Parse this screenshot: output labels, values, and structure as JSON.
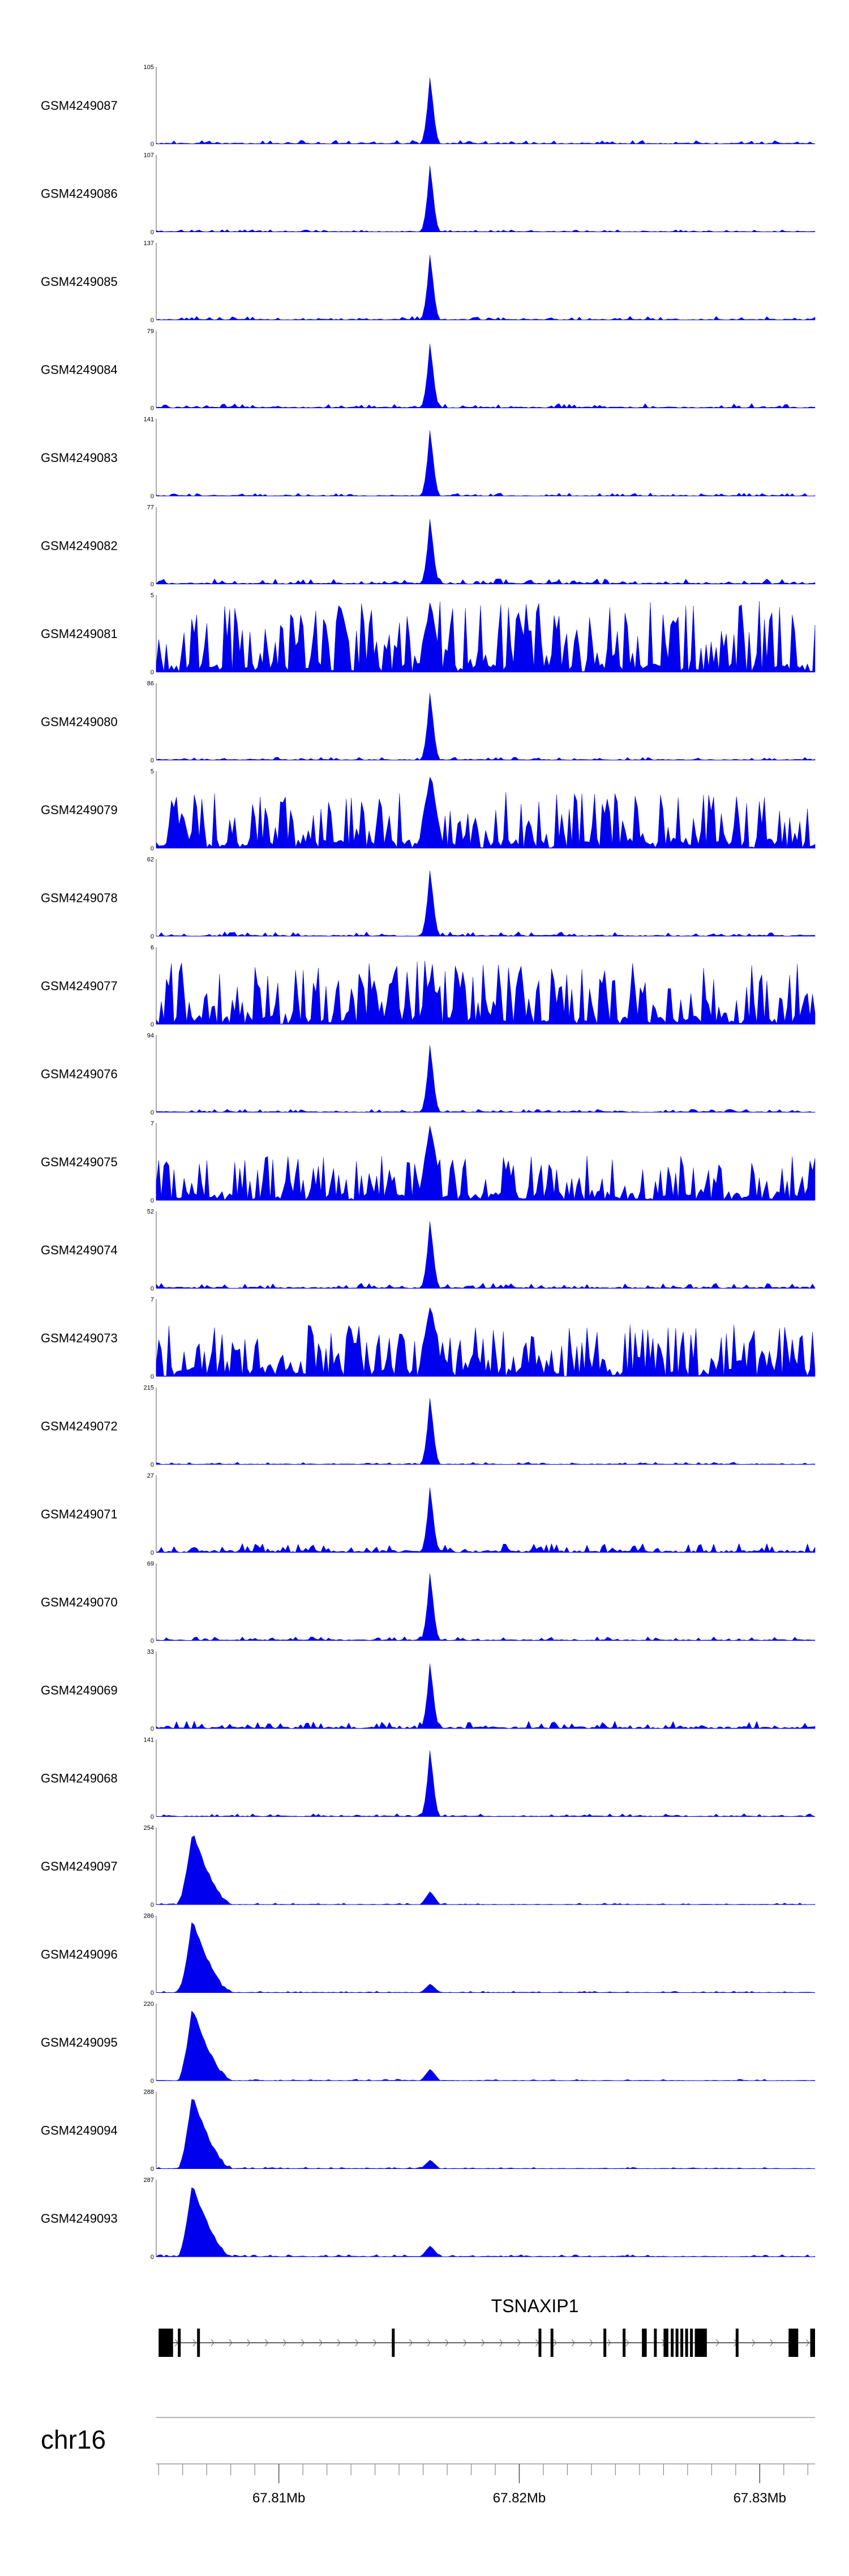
{
  "colors": {
    "signal": "#0000ee",
    "axis": "#555555",
    "gene": "#000000",
    "text": "#000000"
  },
  "chart_data": {
    "type": "area",
    "genomic_axis": {
      "chromosome": "chr16",
      "start_mb": 67.8049,
      "end_mb": 67.8323,
      "tick_labels": [
        {
          "mb": 67.81,
          "label": "67.81Mb"
        },
        {
          "mb": 67.82,
          "label": "67.82Mb"
        },
        {
          "mb": 67.83,
          "label": "67.83Mb"
        }
      ]
    },
    "tracks": [
      {
        "name": "GSM4249087",
        "ymax": 105,
        "ymax_label": "105",
        "zero_label": "0",
        "profile": "peak",
        "base": 0.05,
        "peak": 0.97,
        "seed": 11
      },
      {
        "name": "GSM4249086",
        "ymax": 107,
        "ymax_label": "107",
        "zero_label": "0",
        "profile": "peak",
        "base": 0.03,
        "peak": 0.97,
        "seed": 12
      },
      {
        "name": "GSM4249085",
        "ymax": 137,
        "ymax_label": "137",
        "zero_label": "0",
        "profile": "peak",
        "base": 0.05,
        "peak": 0.95,
        "seed": 13
      },
      {
        "name": "GSM4249084",
        "ymax": 79,
        "ymax_label": "79",
        "zero_label": "0",
        "profile": "peak",
        "base": 0.06,
        "peak": 0.94,
        "seed": 14
      },
      {
        "name": "GSM4249083",
        "ymax": 141,
        "ymax_label": "141",
        "zero_label": "0",
        "profile": "peak",
        "base": 0.04,
        "peak": 0.96,
        "seed": 15
      },
      {
        "name": "GSM4249082",
        "ymax": 77,
        "ymax_label": "77",
        "zero_label": "0",
        "profile": "peak",
        "base": 0.07,
        "peak": 0.95,
        "seed": 16
      },
      {
        "name": "GSM4249081",
        "ymax": 5,
        "ymax_label": "5",
        "zero_label": "0",
        "profile": "noisy",
        "base": 0.95,
        "peak": 0.9,
        "seed": 17
      },
      {
        "name": "GSM4249080",
        "ymax": 86,
        "ymax_label": "86",
        "zero_label": "0",
        "profile": "peak",
        "base": 0.04,
        "peak": 0.98,
        "seed": 18
      },
      {
        "name": "GSM4249079",
        "ymax": 5,
        "ymax_label": "5",
        "zero_label": "0",
        "profile": "noisy",
        "base": 0.75,
        "peak": 0.95,
        "seed": 19
      },
      {
        "name": "GSM4249078",
        "ymax": 62,
        "ymax_label": "62",
        "zero_label": "0",
        "profile": "peak",
        "base": 0.06,
        "peak": 0.96,
        "seed": 20
      },
      {
        "name": "GSM4249077",
        "ymax": 6,
        "ymax_label": "6",
        "zero_label": "0",
        "profile": "noisy",
        "base": 0.85,
        "peak": 0.6,
        "seed": 21
      },
      {
        "name": "GSM4249076",
        "ymax": 94,
        "ymax_label": "94",
        "zero_label": "0",
        "profile": "peak",
        "base": 0.04,
        "peak": 0.98,
        "seed": 22
      },
      {
        "name": "GSM4249075",
        "ymax": 7,
        "ymax_label": "7",
        "zero_label": "0",
        "profile": "noisy",
        "base": 0.6,
        "peak": 0.95,
        "seed": 23
      },
      {
        "name": "GSM4249074",
        "ymax": 52,
        "ymax_label": "52",
        "zero_label": "0",
        "profile": "peak",
        "base": 0.07,
        "peak": 0.98,
        "seed": 24
      },
      {
        "name": "GSM4249073",
        "ymax": 7,
        "ymax_label": "7",
        "zero_label": "0",
        "profile": "noisy",
        "base": 0.7,
        "peak": 0.9,
        "seed": 25
      },
      {
        "name": "GSM4249072",
        "ymax": 215,
        "ymax_label": "215",
        "zero_label": "0",
        "profile": "peak",
        "base": 0.03,
        "peak": 0.97,
        "seed": 26
      },
      {
        "name": "GSM4249071",
        "ymax": 27,
        "ymax_label": "27",
        "zero_label": "0",
        "profile": "peak",
        "base": 0.12,
        "peak": 0.95,
        "seed": 27
      },
      {
        "name": "GSM4249070",
        "ymax": 69,
        "ymax_label": "69",
        "zero_label": "0",
        "profile": "peak",
        "base": 0.05,
        "peak": 0.98,
        "seed": 28
      },
      {
        "name": "GSM4249069",
        "ymax": 33,
        "ymax_label": "33",
        "zero_label": "0",
        "profile": "peak",
        "base": 0.1,
        "peak": 0.95,
        "seed": 29
      },
      {
        "name": "GSM4249068",
        "ymax": 141,
        "ymax_label": "141",
        "zero_label": "0",
        "profile": "peak",
        "base": 0.04,
        "peak": 0.97,
        "seed": 30
      },
      {
        "name": "GSM4249097",
        "ymax": 254,
        "ymax_label": "254",
        "zero_label": "0",
        "profile": "left",
        "base": 0.02,
        "peak": 0.18,
        "seed": 31
      },
      {
        "name": "GSM4249096",
        "ymax": 286,
        "ymax_label": "286",
        "zero_label": "0",
        "profile": "left",
        "base": 0.02,
        "peak": 0.12,
        "seed": 32
      },
      {
        "name": "GSM4249095",
        "ymax": 220,
        "ymax_label": "220",
        "zero_label": "0",
        "profile": "left",
        "base": 0.02,
        "peak": 0.16,
        "seed": 33
      },
      {
        "name": "GSM4249094",
        "ymax": 288,
        "ymax_label": "288",
        "zero_label": "0",
        "profile": "left",
        "base": 0.02,
        "peak": 0.12,
        "seed": 34
      },
      {
        "name": "GSM4249093",
        "ymax": 287,
        "ymax_label": "287",
        "zero_label": "0",
        "profile": "left",
        "base": 0.03,
        "peak": 0.15,
        "seed": 35
      }
    ],
    "gene": {
      "name": "TSNAXIP1",
      "strand": "+",
      "start_mb": 67.805,
      "end_mb": 67.8323,
      "exons_mb": [
        [
          67.805,
          67.8056
        ],
        [
          67.8058,
          67.8059
        ],
        [
          67.8066,
          67.8067
        ],
        [
          67.8147,
          67.8148
        ],
        [
          67.8208,
          67.8209
        ],
        [
          67.8213,
          67.8214
        ],
        [
          67.8235,
          67.8236
        ],
        [
          67.8243,
          67.8244
        ],
        [
          67.8251,
          67.8253
        ],
        [
          67.8256,
          67.8257
        ],
        [
          67.826,
          67.8262
        ],
        [
          67.8263,
          67.8264
        ],
        [
          67.8265,
          67.8266
        ],
        [
          67.8267,
          67.8268
        ],
        [
          67.8269,
          67.827
        ],
        [
          67.8271,
          67.8272
        ],
        [
          67.8273,
          67.8278
        ],
        [
          67.829,
          67.8291
        ],
        [
          67.8312,
          67.8316
        ],
        [
          67.8321,
          67.8323
        ]
      ]
    }
  }
}
